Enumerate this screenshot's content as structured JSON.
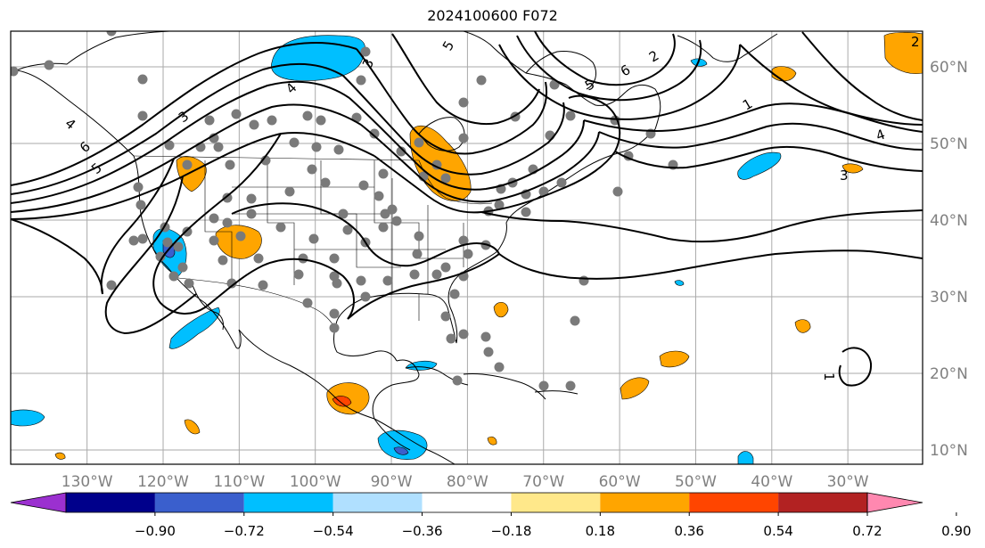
{
  "title": "2024100600 F072",
  "lat_labels": [
    {
      "text": "60°N",
      "lat": 60
    },
    {
      "text": "50°N",
      "lat": 50
    },
    {
      "text": "40°N",
      "lat": 40
    },
    {
      "text": "30°N",
      "lat": 30
    },
    {
      "text": "20°N",
      "lat": 20
    },
    {
      "text": "10°N",
      "lat": 10
    }
  ],
  "lon_labels": [
    {
      "text": "130°W",
      "lon": -130
    },
    {
      "text": "120°W",
      "lon": -120
    },
    {
      "text": "110°W",
      "lon": -110
    },
    {
      "text": "100°W",
      "lon": -100
    },
    {
      "text": "90°W",
      "lon": -90
    },
    {
      "text": "80°W",
      "lon": -80
    },
    {
      "text": "70°W",
      "lon": -70
    },
    {
      "text": "60°W",
      "lon": -60
    },
    {
      "text": "50°W",
      "lon": -50
    },
    {
      "text": "40°W",
      "lon": -40
    },
    {
      "text": "30°W",
      "lon": -30
    }
  ],
  "colorbar": {
    "levels": [
      "−0.90",
      "−0.72",
      "−0.54",
      "−0.36",
      "−0.18",
      "0.18",
      "0.36",
      "0.54",
      "0.72",
      "0.90"
    ],
    "colors": [
      "#9b30d0",
      "#00008b",
      "#3a5fcd",
      "#00bfff",
      "#b0e0ff",
      "#ffffff",
      "#ffe88a",
      "#ffa500",
      "#ff4500",
      "#b22222",
      "#ff88b0"
    ]
  },
  "contour_labels": [
    "1",
    "2",
    "3",
    "4",
    "5",
    "6"
  ]
}
